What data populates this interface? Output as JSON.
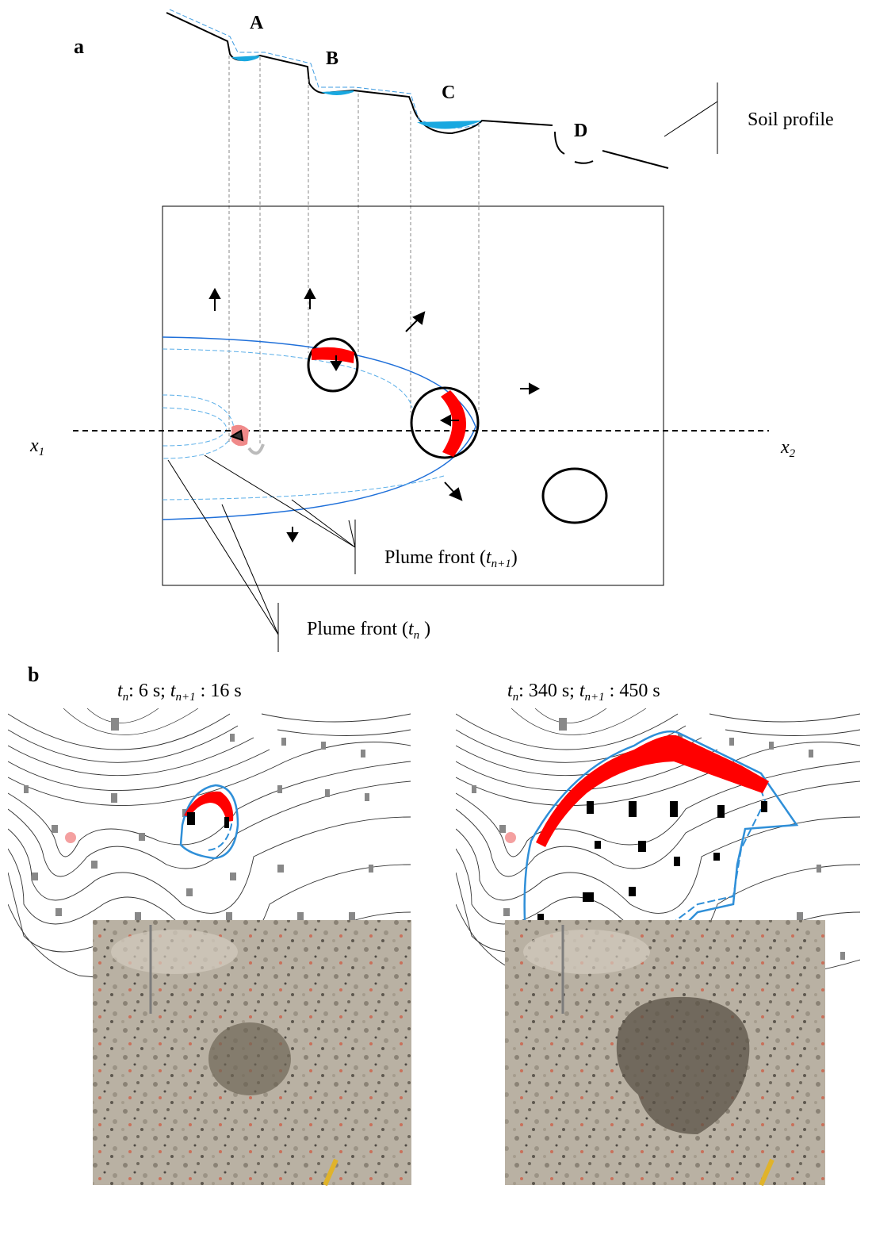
{
  "panel_a": {
    "letter": "a",
    "sites": [
      "A",
      "B",
      "C",
      "D"
    ],
    "soil_profile_label": "Soil profile",
    "axis_left": {
      "base": "x",
      "sub": "1"
    },
    "axis_right": {
      "base": "x",
      "sub": "2"
    },
    "plume_front_next": {
      "text": "Plume front (",
      "t": "t",
      "sub": "n+1",
      "close": ")"
    },
    "plume_front_now": {
      "text": "Plume front (",
      "t": "t",
      "sub": "n",
      "close": " )"
    }
  },
  "panel_b": {
    "letter": "b",
    "left_caption": {
      "t1": "t",
      "s1": "n",
      "mid": ": 6 s; ",
      "t2": "t",
      "s2": "n+1",
      "end": " : 16 s"
    },
    "right_caption": {
      "t1": "t",
      "s1": "n",
      "mid": ": 340 s; ",
      "t2": "t",
      "s2": "n+1",
      "end": " : 450 s"
    }
  },
  "colors": {
    "water": "#19a8e0",
    "plume_red": "#ff0000",
    "outline_blue": "#2f8fd8",
    "contour": "#333333",
    "soil": "#b8b0a2"
  }
}
